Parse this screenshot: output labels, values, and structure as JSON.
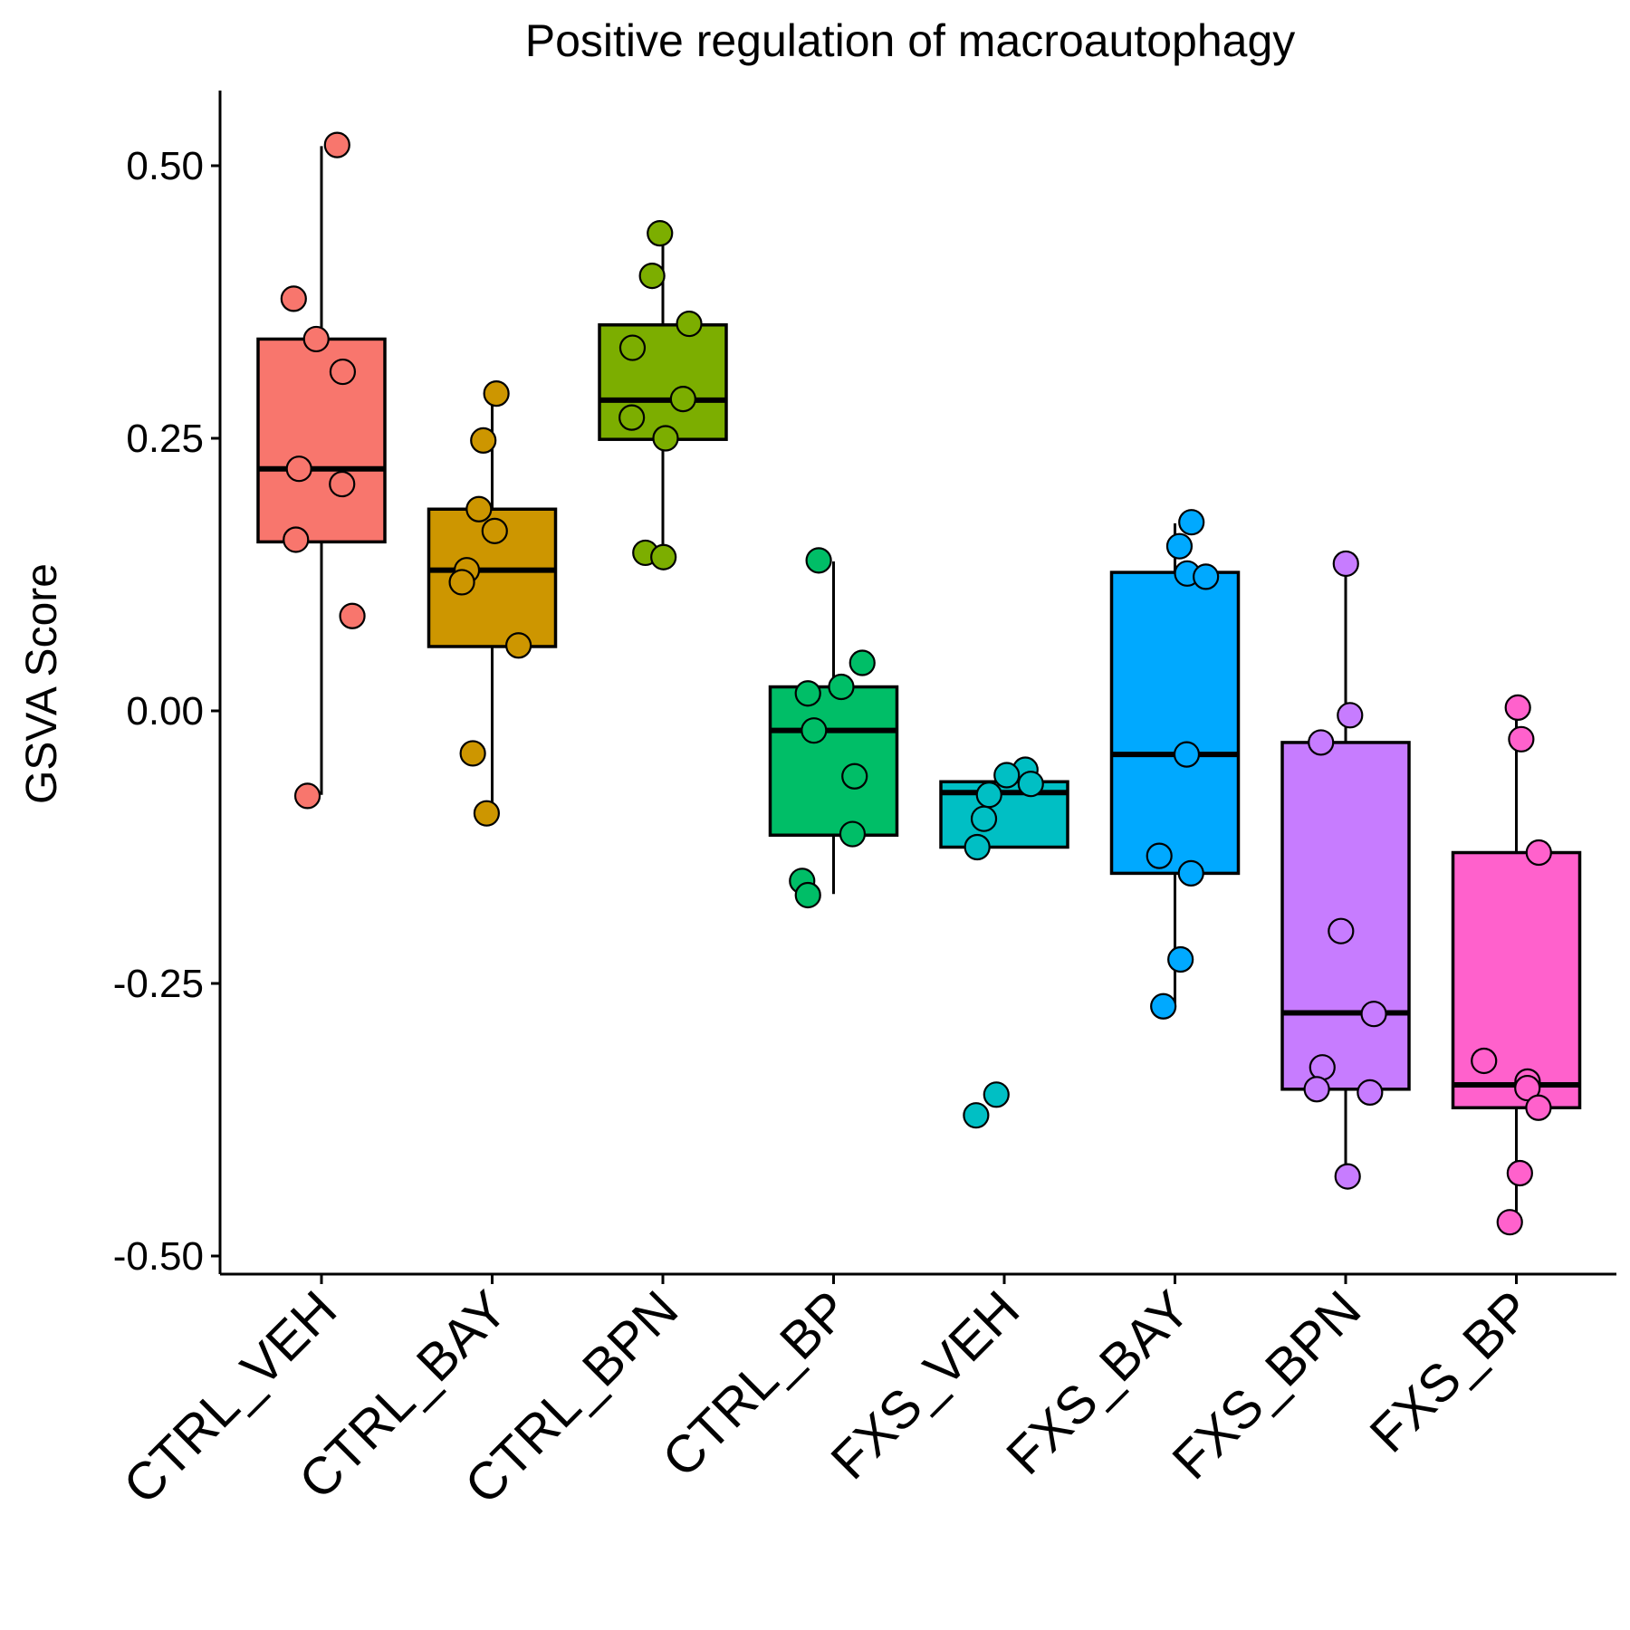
{
  "chart_data": {
    "type": "boxplot",
    "title": "Positive regulation of macroautophagy",
    "xlabel": "",
    "ylabel": "GSVA Score",
    "ylim": [
      -0.515,
      0.565
    ],
    "yticks": [
      0.5,
      0.25,
      0.0,
      -0.25,
      -0.5
    ],
    "ytick_labels": [
      "0.50",
      "0.25",
      "0.00",
      "-0.25",
      "-0.50"
    ],
    "grid": false,
    "legend": "none",
    "categories": [
      "CTRL_VEH",
      "CTRL_BAY",
      "CTRL_BPN",
      "CTRL_BP",
      "FXS_VEH",
      "FXS_BAY",
      "FXS_BPN",
      "FXS_BP"
    ],
    "groups": [
      {
        "name": "CTRL_VEH",
        "color": "#F8766D",
        "q1": 0.155,
        "median": 0.222,
        "q3": 0.341,
        "whisker_low": -0.077,
        "whisker_high": 0.518,
        "points": [
          0.519,
          0.378,
          0.341,
          0.311,
          0.222,
          0.208,
          0.157,
          0.087,
          -0.078
        ]
      },
      {
        "name": "CTRL_BAY",
        "color": "#CD9600",
        "q1": 0.059,
        "median": 0.129,
        "q3": 0.185,
        "whisker_low": -0.093,
        "whisker_high": 0.29,
        "points": [
          0.291,
          0.248,
          0.185,
          0.165,
          0.129,
          0.118,
          0.06,
          -0.039,
          -0.094
        ]
      },
      {
        "name": "CTRL_BPN",
        "color": "#7CAE00",
        "q1": 0.249,
        "median": 0.285,
        "q3": 0.354,
        "whisker_low": 0.141,
        "whisker_high": 0.437,
        "points": [
          0.438,
          0.399,
          0.355,
          0.333,
          0.286,
          0.269,
          0.25,
          0.145,
          0.141
        ]
      },
      {
        "name": "CTRL_BP",
        "color": "#00BE67",
        "q1": -0.114,
        "median": -0.018,
        "q3": 0.022,
        "whisker_low": -0.168,
        "whisker_high": 0.137,
        "points": [
          0.138,
          0.044,
          0.022,
          0.016,
          -0.018,
          -0.06,
          -0.113,
          -0.156,
          -0.169
        ]
      },
      {
        "name": "FXS_VEH",
        "color": "#00BFC4",
        "q1": -0.125,
        "median": -0.075,
        "q3": -0.065,
        "whisker_low": -0.125,
        "whisker_high": -0.056,
        "points": [
          -0.054,
          -0.059,
          -0.067,
          -0.077,
          -0.099,
          -0.125,
          -0.352,
          -0.371
        ]
      },
      {
        "name": "FXS_BAY",
        "color": "#00A9FF",
        "q1": -0.149,
        "median": -0.04,
        "q3": 0.127,
        "whisker_low": -0.27,
        "whisker_high": 0.172,
        "points": [
          0.173,
          0.151,
          0.126,
          0.123,
          -0.04,
          -0.133,
          -0.149,
          -0.228,
          -0.271
        ]
      },
      {
        "name": "FXS_BPN",
        "color": "#C77CFF",
        "q1": -0.347,
        "median": -0.277,
        "q3": -0.029,
        "whisker_low": -0.425,
        "whisker_high": 0.134,
        "points": [
          0.135,
          -0.004,
          -0.029,
          -0.202,
          -0.278,
          -0.327,
          -0.347,
          -0.35,
          -0.427
        ]
      },
      {
        "name": "FXS_BP",
        "color": "#FF61CC",
        "q1": -0.364,
        "median": -0.343,
        "q3": -0.13,
        "whisker_low": -0.469,
        "whisker_high": 0.002,
        "points": [
          0.003,
          -0.026,
          -0.13,
          -0.321,
          -0.34,
          -0.346,
          -0.364,
          -0.424,
          -0.469
        ]
      }
    ]
  }
}
